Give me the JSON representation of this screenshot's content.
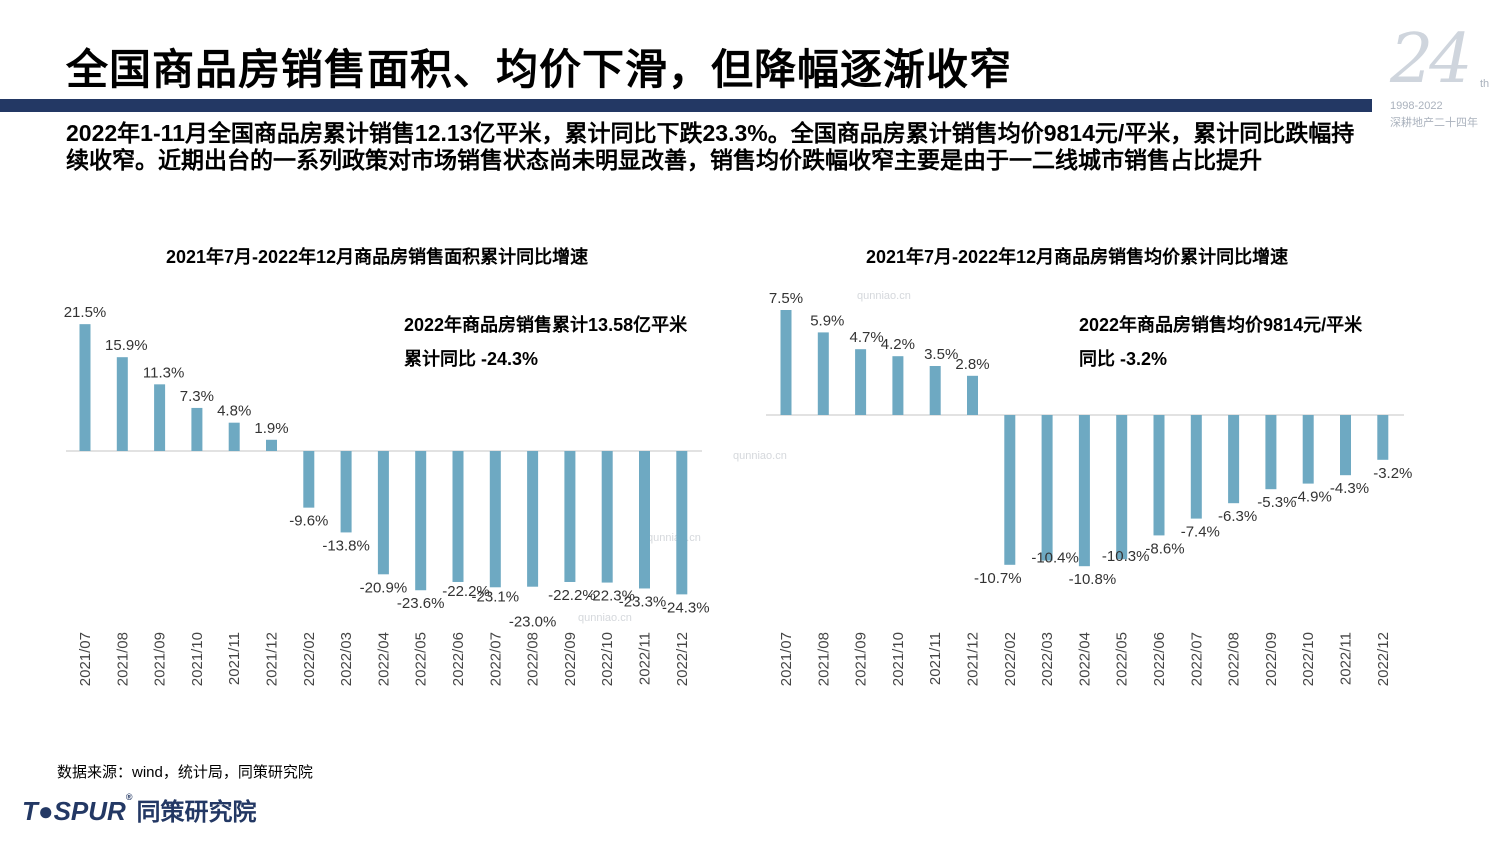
{
  "header": {
    "title": "全国商品房销售面积、均价下滑，但降幅逐渐收窄",
    "summary": "2022年1-11月全国商品房累计销售12.13亿平米，累计同比下跌23.3%。全国商品房累计销售均价9814元/平米，累计同比跌幅持续收窄。近期出台的一系列政策对市场销售状态尚未明显改善，销售均价跌幅收窄主要是由于一二线城市销售占比提升"
  },
  "badge": {
    "number": "24",
    "suffix": "th",
    "years": "1998-2022",
    "subtitle": "深耕地产二十四年"
  },
  "annotations": {
    "left_line1": "2022年商品房销售累计13.58亿平米",
    "left_line2": "累计同比 -24.3%",
    "right_line1": "2022年商品房销售均价9814元/平米",
    "right_line2": "同比 -3.2%"
  },
  "watermark": "qunniao.cn",
  "footer": {
    "source": "数据来源：wind，统计局，同策研究院",
    "logo_en": "T●SPUR",
    "logo_reg": "®",
    "logo_cn": "同策研究院"
  },
  "colors": {
    "bar": "#6ea9c2",
    "title_bar": "#233864",
    "axis": "#d9d9d9"
  },
  "chart_data": [
    {
      "type": "bar",
      "title": "2021年7月-2022年12月商品房销售面积累计同比增速",
      "categories": [
        "2021/07",
        "2021/08",
        "2021/09",
        "2021/10",
        "2021/11",
        "2021/12",
        "2022/02",
        "2022/03",
        "2022/04",
        "2022/05",
        "2022/06",
        "2022/07",
        "2022/08",
        "2022/09",
        "2022/10",
        "2022/11",
        "2022/12"
      ],
      "values": [
        21.5,
        15.9,
        11.3,
        7.3,
        4.8,
        1.9,
        -9.6,
        -13.8,
        -20.9,
        -23.6,
        -22.2,
        -23.1,
        -23.0,
        -22.2,
        -22.3,
        -23.3,
        -24.3
      ],
      "labels": [
        "21.5%",
        "15.9%",
        "11.3%",
        "7.3%",
        "4.8%",
        "1.9%",
        "-9.6%",
        "-13.8%",
        "-20.9%",
        "-23.6%",
        "-22.2%",
        "-23.1%",
        "-23.0%",
        "-22.2%",
        "-22.3%",
        "-23.3%",
        "-24.3%"
      ],
      "unit": "%",
      "grid": false,
      "legend": "none"
    },
    {
      "type": "bar",
      "title": "2021年7月-2022年12月商品房销售均价累计同比增速",
      "categories": [
        "2021/07",
        "2021/08",
        "2021/09",
        "2021/10",
        "2021/11",
        "2021/12",
        "2022/02",
        "2022/03",
        "2022/04",
        "2022/05",
        "2022/06",
        "2022/07",
        "2022/08",
        "2022/09",
        "2022/10",
        "2022/11",
        "2022/12"
      ],
      "values": [
        7.5,
        5.9,
        4.7,
        4.2,
        3.5,
        2.8,
        -10.7,
        -10.4,
        -10.8,
        -10.3,
        -8.6,
        -7.4,
        -6.3,
        -5.3,
        -4.9,
        -4.3,
        -3.2
      ],
      "labels": [
        "7.5%",
        "5.9%",
        "4.7%",
        "4.2%",
        "3.5%",
        "2.8%",
        "-10.7%",
        "-10.4%",
        "-10.8%",
        "-10.3%",
        "-8.6%",
        "-7.4%",
        "-6.3%",
        "-5.3%",
        "-4.9%",
        "-4.3%",
        "-3.2%"
      ],
      "unit": "%",
      "grid": false,
      "legend": "none"
    }
  ]
}
